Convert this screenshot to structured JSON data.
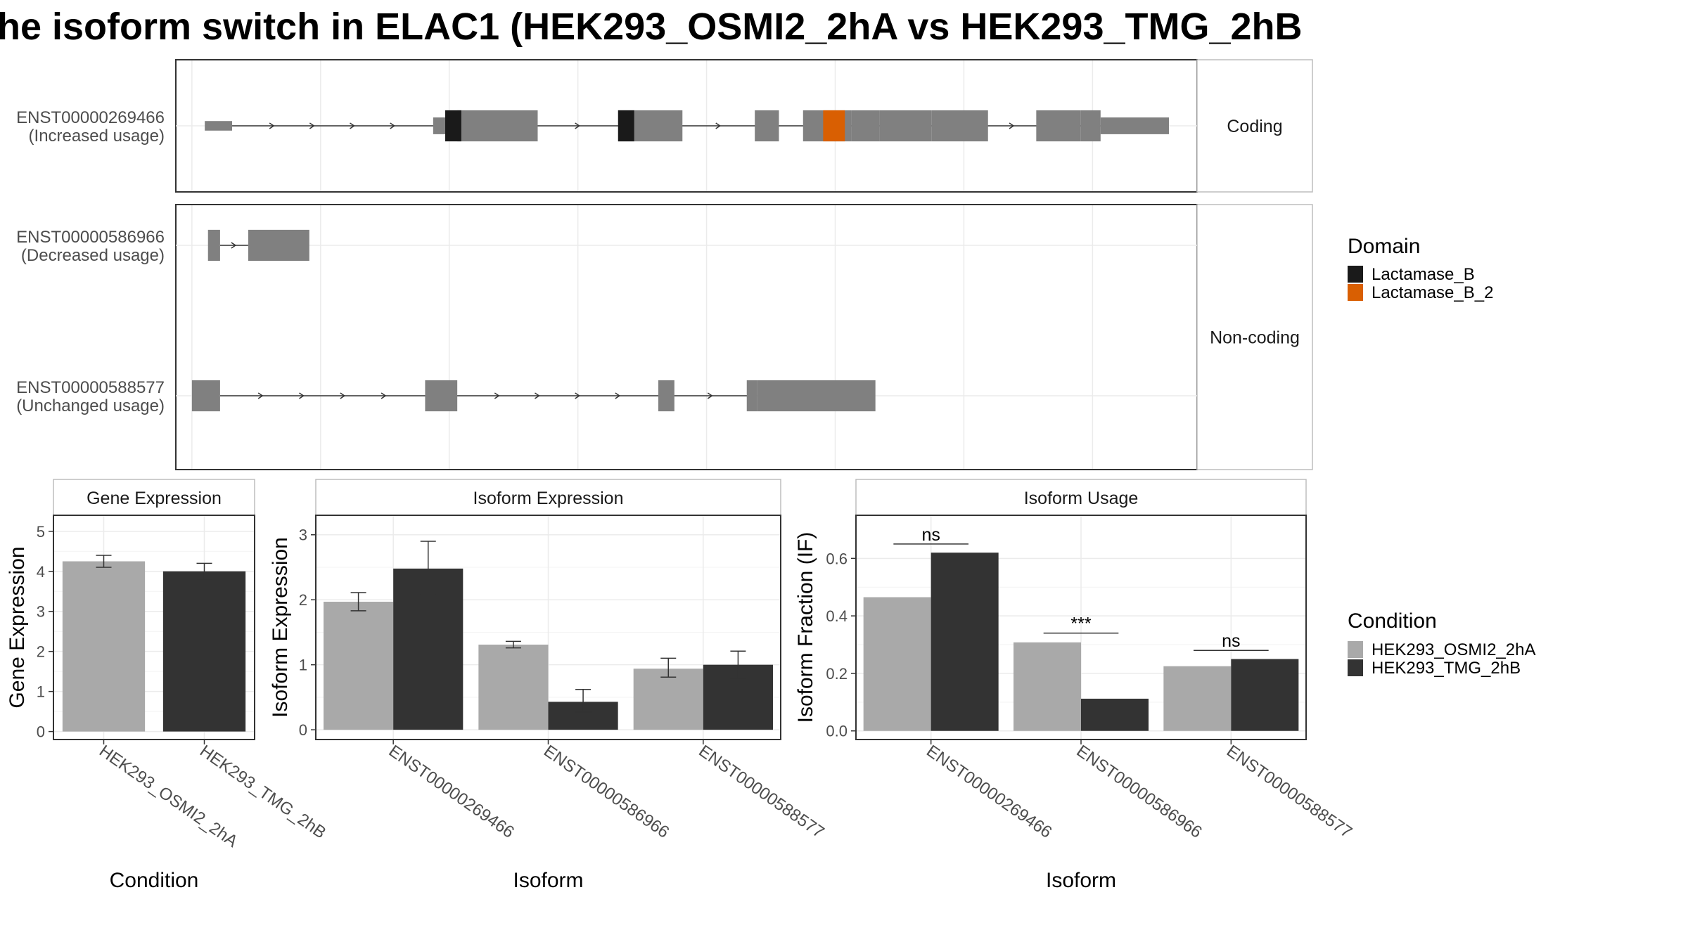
{
  "title": "he isoform switch in ELAC1 (HEK293_OSMI2_2hA vs HEK293_TMG_2hB",
  "colors": {
    "exon": "#808080",
    "Lactamase_B": "#1a1a1a",
    "Lactamase_B_2": "#d95f02",
    "HEK293_OSMI2_2hA": "#a9a9a9",
    "HEK293_TMG_2hB": "#333333",
    "panel_border": "#333333",
    "strip_fill": "#ffffff",
    "grid": "#ebebeb"
  },
  "transcripts": {
    "facets": [
      "Coding",
      "Non-coding"
    ],
    "isoforms": [
      {
        "id": "ENST00000269466",
        "usage": "(Increased usage)",
        "facet": "Coding",
        "exons": [
          [
            0.16,
            0.5,
            0.08
          ],
          [
            3.0,
            3.3,
            0.14
          ],
          [
            3.3,
            4.3,
            0.26
          ],
          [
            5.3,
            6.1,
            0.26
          ],
          [
            7.0,
            7.3,
            0.26
          ],
          [
            7.6,
            8.2,
            0.26
          ],
          [
            8.2,
            8.55,
            0.26
          ],
          [
            8.55,
            9.2,
            0.26
          ],
          [
            9.2,
            9.9,
            0.26
          ],
          [
            10.5,
            11.05,
            0.26
          ],
          [
            11.05,
            11.3,
            0.26
          ],
          [
            11.3,
            12.15,
            0.14
          ]
        ],
        "exon_types": [
          "utr",
          "utr",
          "cds",
          "cds",
          "cds",
          "cds",
          "domain_b",
          "domain_b",
          "cds",
          "cds",
          "cds",
          "utr"
        ],
        "domains": [
          {
            "name": "Lactamase_B",
            "start": 3.15,
            "end": 3.35
          },
          {
            "name": "Lactamase_B",
            "start": 5.3,
            "end": 5.5
          },
          {
            "name": "Lactamase_B_2",
            "start": 7.85,
            "end": 8.12
          }
        ]
      },
      {
        "id": "ENST00000586966",
        "usage": "(Decreased usage)",
        "facet": "Non-coding",
        "exons": [
          [
            0.2,
            0.35,
            0.26
          ],
          [
            0.7,
            1.46,
            0.26
          ]
        ]
      },
      {
        "id": "ENST00000588577",
        "usage": "(Unchanged usage)",
        "facet": "Non-coding",
        "exons": [
          [
            0.0,
            0.35,
            0.26
          ],
          [
            2.9,
            3.3,
            0.26
          ],
          [
            5.8,
            6.0,
            0.26
          ],
          [
            6.9,
            7.03,
            0.26
          ],
          [
            7.03,
            8.5,
            0.26
          ]
        ]
      }
    ]
  },
  "domain_legend": {
    "title": "Domain",
    "items": [
      {
        "label": "Lactamase_B",
        "color": "#1a1a1a"
      },
      {
        "label": "Lactamase_B_2",
        "color": "#d95f02"
      }
    ]
  },
  "condition_legend": {
    "title": "Condition",
    "items": [
      {
        "label": "HEK293_OSMI2_2hA",
        "color": "#a9a9a9"
      },
      {
        "label": "HEK293_TMG_2hB",
        "color": "#333333"
      }
    ]
  },
  "chart_data": [
    {
      "type": "bar",
      "title": "Gene Expression",
      "xlabel": "Condition",
      "ylabel": "Gene Expression",
      "categories": [
        "HEK293_OSMI2_2hA",
        "HEK293_TMG_2hB"
      ],
      "values": [
        4.25,
        4.0
      ],
      "errors": [
        [
          4.1,
          4.4
        ],
        [
          3.8,
          4.2
        ]
      ],
      "ylim": [
        -0.2,
        5.4
      ],
      "yticks": [
        0,
        1,
        2,
        3,
        4,
        5
      ],
      "legend": "right"
    },
    {
      "type": "bar",
      "title": "Isoform Expression",
      "xlabel": "Isoform",
      "ylabel": "Isoform Expression",
      "categories": [
        "ENST00000269466",
        "ENST00000586966",
        "ENST00000588577"
      ],
      "series": [
        {
          "name": "HEK293_OSMI2_2hA",
          "values": [
            1.97,
            1.31,
            0.94
          ],
          "errors": [
            [
              1.83,
              2.11
            ],
            [
              1.26,
              1.36
            ],
            [
              0.81,
              1.1
            ]
          ]
        },
        {
          "name": "HEK293_TMG_2hB",
          "values": [
            2.48,
            0.43,
            1.0
          ],
          "errors": [
            [
              2.08,
              2.9
            ],
            [
              0.27,
              0.62
            ],
            [
              0.79,
              1.21
            ]
          ]
        }
      ],
      "ylim": [
        -0.15,
        3.3
      ],
      "yticks": [
        0,
        1,
        2,
        3
      ],
      "legend": "right"
    },
    {
      "type": "bar",
      "title": "Isoform Usage",
      "xlabel": "Isoform",
      "ylabel": "Isoform Fraction (IF)",
      "categories": [
        "ENST00000269466",
        "ENST00000586966",
        "ENST00000588577"
      ],
      "series": [
        {
          "name": "HEK293_OSMI2_2hA",
          "values": [
            0.465,
            0.308,
            0.225
          ]
        },
        {
          "name": "HEK293_TMG_2hB",
          "values": [
            0.62,
            0.112,
            0.25
          ]
        }
      ],
      "significance": [
        {
          "category": "ENST00000269466",
          "label": "ns",
          "y": 0.65
        },
        {
          "category": "ENST00000586966",
          "label": "***",
          "y": 0.34
        },
        {
          "category": "ENST00000588577",
          "label": "ns",
          "y": 0.28
        }
      ],
      "ylim": [
        -0.03,
        0.75
      ],
      "yticks": [
        0.0,
        0.2,
        0.4,
        0.6
      ],
      "ytick_labels": [
        "0.0",
        "0.2",
        "0.4",
        "0.6"
      ],
      "legend": "right"
    }
  ]
}
